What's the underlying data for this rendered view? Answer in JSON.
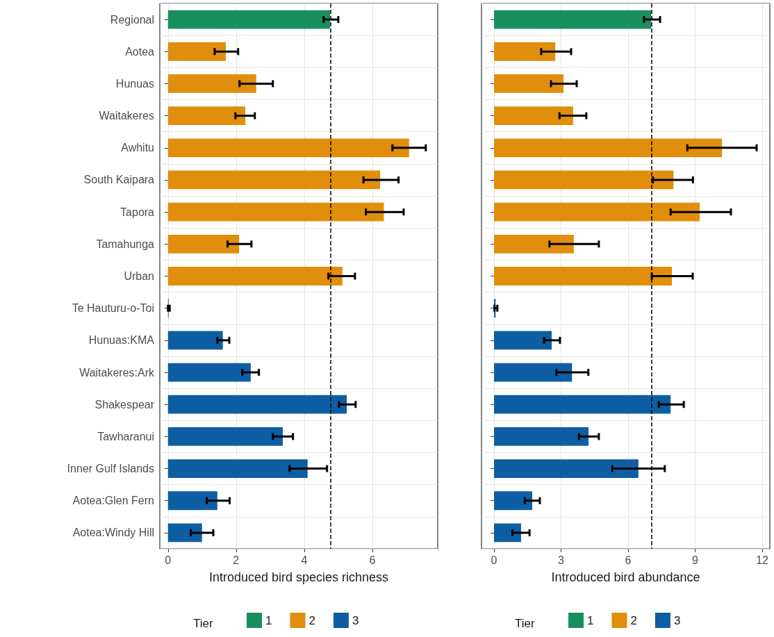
{
  "chart_data": [
    {
      "type": "bar",
      "orientation": "horizontal",
      "xlabel": "Introduced bird species richness",
      "legend_title": "Tier",
      "legend": "bottom",
      "grid": true,
      "categories": [
        "Regional",
        "Aotea",
        "Hunuas",
        "Waitakeres",
        "Awhitu",
        "South Kaipara",
        "Tapora",
        "Tamahunga",
        "Urban",
        "Te Hauturu-o-Toi",
        "Hunuas:KMA",
        "Waitakeres:Ark",
        "Shakespear",
        "Tawharanui",
        "Inner Gulf Islands",
        "Aotea:Glen Fern",
        "Aotea:Windy Hill"
      ],
      "xlim": [
        -0.24,
        7.92
      ],
      "xticks": [
        0,
        2,
        4,
        6
      ],
      "ref_lines": [
        {
          "axis": "x",
          "value": 4.78,
          "line_style": "dashed",
          "color": "#000000"
        }
      ],
      "series": [
        {
          "name": "1",
          "color": "#1a8f5e",
          "values": [
            4.76,
            null,
            null,
            null,
            null,
            null,
            null,
            null,
            null,
            null,
            null,
            null,
            null,
            null,
            null,
            null,
            null
          ],
          "errors": [
            [
              4.57,
              5.0
            ],
            null,
            null,
            null,
            null,
            null,
            null,
            null,
            null,
            null,
            null,
            null,
            null,
            null,
            null,
            null,
            null
          ]
        },
        {
          "name": "2",
          "color": "#e08e0b",
          "values": [
            null,
            1.7,
            2.59,
            2.27,
            7.08,
            6.23,
            6.34,
            2.09,
            5.12,
            null,
            null,
            null,
            null,
            null,
            null,
            null,
            null
          ],
          "errors": [
            null,
            [
              1.37,
              2.06
            ],
            [
              2.1,
              3.08
            ],
            [
              1.98,
              2.55
            ],
            [
              6.59,
              7.57
            ],
            [
              5.74,
              6.77
            ],
            [
              5.81,
              6.92
            ],
            [
              1.75,
              2.45
            ],
            [
              4.71,
              5.49
            ],
            null,
            null,
            null,
            null,
            null,
            null,
            null,
            null
          ]
        },
        {
          "name": "3",
          "color": "#0e5ea3",
          "values": [
            null,
            null,
            null,
            null,
            null,
            null,
            null,
            null,
            null,
            0.02,
            1.61,
            2.43,
            5.25,
            3.37,
            4.1,
            1.45,
            1.0
          ],
          "errors": [
            null,
            null,
            null,
            null,
            null,
            null,
            null,
            null,
            null,
            [
              0,
              0.05
            ],
            [
              1.45,
              1.8
            ],
            [
              2.18,
              2.67
            ],
            [
              5.02,
              5.51
            ],
            [
              3.08,
              3.67
            ],
            [
              3.57,
              4.67
            ],
            [
              1.14,
              1.81
            ],
            [
              0.67,
              1.33
            ]
          ]
        }
      ]
    },
    {
      "type": "bar",
      "orientation": "horizontal",
      "xlabel": "Introduced bird abundance",
      "legend_title": "Tier",
      "legend": "bottom",
      "grid": true,
      "categories": [
        null,
        null,
        null,
        null,
        null,
        null,
        null,
        null,
        null,
        null,
        null,
        null,
        null,
        null,
        null,
        null,
        null
      ],
      "xlim": [
        -0.56,
        12.34
      ],
      "xticks": [
        0,
        3,
        6,
        9,
        12
      ],
      "ref_lines": [
        {
          "axis": "x",
          "value": 7.06,
          "line_style": "dashed",
          "color": "#000000"
        }
      ],
      "series": [
        {
          "name": "1",
          "color": "#1a8f5e",
          "values": [
            7.03,
            null,
            null,
            null,
            null,
            null,
            null,
            null,
            null,
            null,
            null,
            null,
            null,
            null,
            null,
            null,
            null
          ],
          "errors": [
            [
              6.71,
              7.43
            ],
            null,
            null,
            null,
            null,
            null,
            null,
            null,
            null,
            null,
            null,
            null,
            null,
            null,
            null,
            null,
            null
          ]
        },
        {
          "name": "2",
          "color": "#e08e0b",
          "values": [
            null,
            2.74,
            3.11,
            3.54,
            10.2,
            8.03,
            9.2,
            3.57,
            7.96,
            null,
            null,
            null,
            null,
            null,
            null,
            null,
            null
          ],
          "errors": [
            null,
            [
              2.11,
              3.45
            ],
            [
              2.55,
              3.7
            ],
            [
              2.93,
              4.13
            ],
            [
              8.65,
              11.75
            ],
            [
              7.11,
              8.9
            ],
            [
              7.9,
              10.6
            ],
            [
              2.48,
              4.69
            ],
            [
              7.06,
              8.89
            ],
            null,
            null,
            null,
            null,
            null,
            null,
            null,
            null
          ]
        },
        {
          "name": "3",
          "color": "#0e5ea3",
          "values": [
            null,
            null,
            null,
            null,
            null,
            null,
            null,
            null,
            null,
            0.07,
            2.58,
            3.49,
            7.9,
            4.23,
            6.46,
            1.71,
            1.21
          ],
          "errors": [
            null,
            null,
            null,
            null,
            null,
            null,
            null,
            null,
            null,
            [
              0.02,
              0.15
            ],
            [
              2.24,
              2.95
            ],
            [
              2.79,
              4.22
            ],
            [
              7.37,
              8.49
            ],
            [
              3.8,
              4.69
            ],
            [
              5.29,
              7.64
            ],
            [
              1.38,
              2.05
            ],
            [
              0.82,
              1.59
            ]
          ]
        }
      ]
    }
  ]
}
